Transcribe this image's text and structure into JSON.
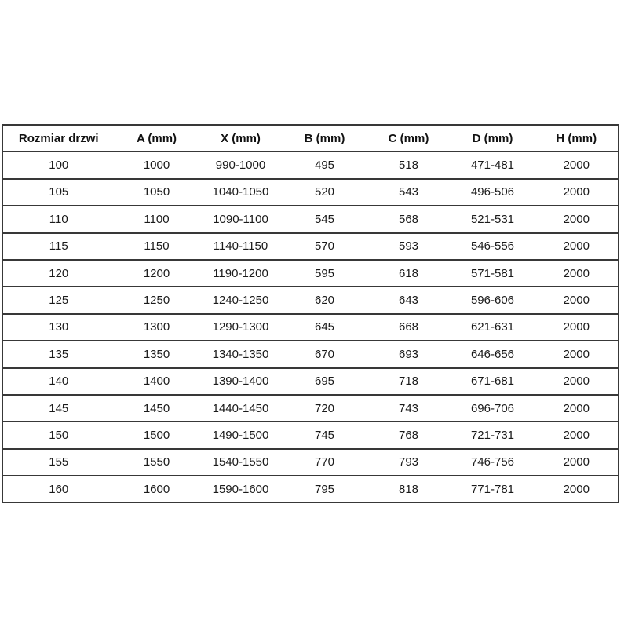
{
  "table": {
    "name": "door-size-table",
    "headers": [
      "Rozmiar drzwi",
      "A (mm)",
      "X (mm)",
      "B (mm)",
      "C (mm)",
      "D (mm)",
      "H (mm)"
    ],
    "rows": [
      [
        "100",
        "1000",
        "990-1000",
        "495",
        "518",
        "471-481",
        "2000"
      ],
      [
        "105",
        "1050",
        "1040-1050",
        "520",
        "543",
        "496-506",
        "2000"
      ],
      [
        "110",
        "1100",
        "1090-1100",
        "545",
        "568",
        "521-531",
        "2000"
      ],
      [
        "115",
        "1150",
        "1140-1150",
        "570",
        "593",
        "546-556",
        "2000"
      ],
      [
        "120",
        "1200",
        "1190-1200",
        "595",
        "618",
        "571-581",
        "2000"
      ],
      [
        "125",
        "1250",
        "1240-1250",
        "620",
        "643",
        "596-606",
        "2000"
      ],
      [
        "130",
        "1300",
        "1290-1300",
        "645",
        "668",
        "621-631",
        "2000"
      ],
      [
        "135",
        "1350",
        "1340-1350",
        "670",
        "693",
        "646-656",
        "2000"
      ],
      [
        "140",
        "1400",
        "1390-1400",
        "695",
        "718",
        "671-681",
        "2000"
      ],
      [
        "145",
        "1450",
        "1440-1450",
        "720",
        "743",
        "696-706",
        "2000"
      ],
      [
        "150",
        "1500",
        "1490-1500",
        "745",
        "768",
        "721-731",
        "2000"
      ],
      [
        "155",
        "1550",
        "1540-1550",
        "770",
        "793",
        "746-756",
        "2000"
      ],
      [
        "160",
        "1600",
        "1590-1600",
        "795",
        "818",
        "771-781",
        "2000"
      ]
    ],
    "colors": {
      "outer_border": "#383838",
      "inner_vertical_border": "#7a7a7a",
      "text": "#1a1a1a",
      "background": "#ffffff"
    }
  }
}
